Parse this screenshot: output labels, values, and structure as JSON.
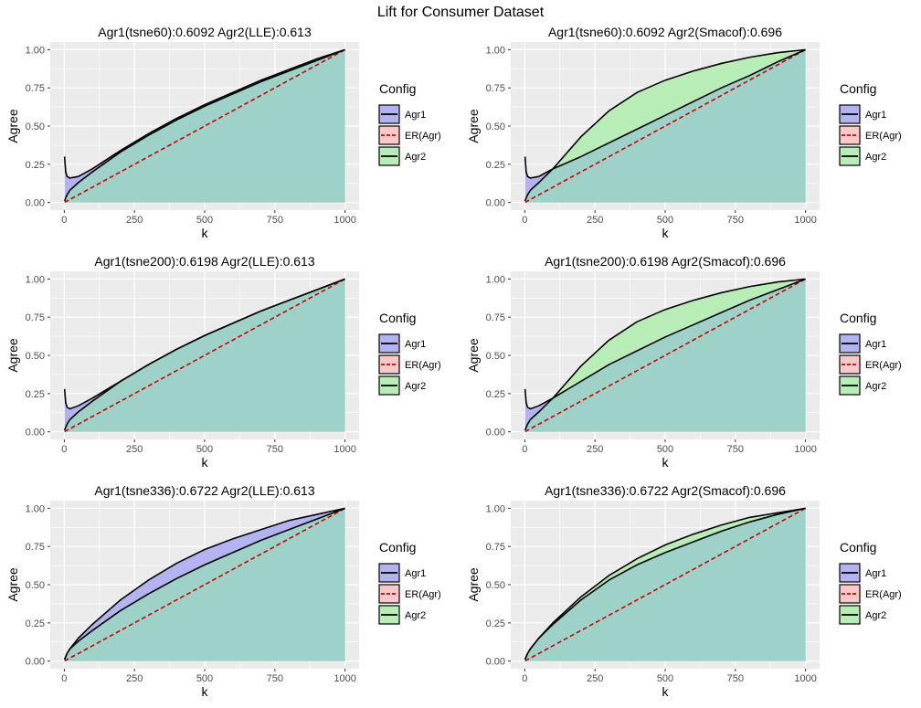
{
  "figure_title": "Lift for Consumer Dataset",
  "colors": {
    "panel_bg": "#EBEBEB",
    "grid": "#FFFFFF",
    "agr1_fill": "#B3B3F2",
    "agr2_fill": "#B8EDB8",
    "er_fill": "#F9C8C8",
    "overlap_fill": "#9ED2C8",
    "er_line": "#CC0000",
    "curve_line": "#000000",
    "tick_text": "#4D4D4D"
  },
  "chart_data": [
    {
      "type": "area",
      "title": "Agr1(tsne60):0.6092 Agr2(LLE):0.613",
      "xlabel": "k",
      "ylabel": "Agree",
      "xlim": [
        0,
        1000
      ],
      "ylim": [
        0,
        1
      ],
      "xticks": [
        "0",
        "250",
        "500",
        "750",
        "1000"
      ],
      "yticks": [
        "0.00",
        "0.25",
        "0.50",
        "0.75",
        "1.00"
      ],
      "legend": {
        "title": "Config",
        "position": "right",
        "entries": [
          "Agr1",
          "ER(Agr)",
          "Agr2"
        ]
      },
      "x": [
        1,
        5,
        10,
        20,
        50,
        100,
        200,
        300,
        400,
        500,
        600,
        700,
        800,
        900,
        1000
      ],
      "series": [
        {
          "name": "Agr1",
          "values": [
            0.3,
            0.2,
            0.17,
            0.16,
            0.17,
            0.22,
            0.34,
            0.45,
            0.55,
            0.64,
            0.72,
            0.8,
            0.87,
            0.94,
            1.0
          ]
        },
        {
          "name": "ER(Agr)",
          "values": [
            0.001,
            0.005,
            0.01,
            0.02,
            0.05,
            0.1,
            0.2,
            0.3,
            0.4,
            0.5,
            0.6,
            0.7,
            0.8,
            0.9,
            1.0
          ]
        },
        {
          "name": "Agr2",
          "values": [
            0.01,
            0.03,
            0.05,
            0.08,
            0.13,
            0.2,
            0.33,
            0.44,
            0.54,
            0.63,
            0.71,
            0.79,
            0.86,
            0.93,
            1.0
          ]
        }
      ]
    },
    {
      "type": "area",
      "title": "Agr1(tsne60):0.6092 Agr2(Smacof):0.696",
      "xlabel": "k",
      "ylabel": "Agree",
      "xlim": [
        0,
        1000
      ],
      "ylim": [
        0,
        1
      ],
      "xticks": [
        "0",
        "250",
        "500",
        "750",
        "1000"
      ],
      "yticks": [
        "0.00",
        "0.25",
        "0.50",
        "0.75",
        "1.00"
      ],
      "legend": {
        "title": "Config",
        "position": "right",
        "entries": [
          "Agr1",
          "ER(Agr)",
          "Agr2"
        ]
      },
      "x": [
        1,
        5,
        10,
        20,
        50,
        100,
        200,
        300,
        400,
        500,
        600,
        700,
        800,
        900,
        1000
      ],
      "series": [
        {
          "name": "Agr1",
          "values": [
            0.3,
            0.2,
            0.17,
            0.16,
            0.17,
            0.22,
            0.3,
            0.39,
            0.48,
            0.57,
            0.66,
            0.75,
            0.83,
            0.92,
            1.0
          ]
        },
        {
          "name": "ER(Agr)",
          "values": [
            0.001,
            0.005,
            0.01,
            0.02,
            0.05,
            0.1,
            0.2,
            0.3,
            0.4,
            0.5,
            0.6,
            0.7,
            0.8,
            0.9,
            1.0
          ]
        },
        {
          "name": "Agr2",
          "values": [
            0.01,
            0.03,
            0.05,
            0.08,
            0.13,
            0.22,
            0.43,
            0.6,
            0.72,
            0.8,
            0.86,
            0.91,
            0.95,
            0.98,
            1.0
          ]
        }
      ]
    },
    {
      "type": "area",
      "title": "Agr1(tsne200):0.6198 Agr2(LLE):0.613",
      "xlabel": "k",
      "ylabel": "Agree",
      "xlim": [
        0,
        1000
      ],
      "ylim": [
        0,
        1
      ],
      "xticks": [
        "0",
        "250",
        "500",
        "750",
        "1000"
      ],
      "yticks": [
        "0.00",
        "0.25",
        "0.50",
        "0.75",
        "1.00"
      ],
      "legend": {
        "title": "Config",
        "position": "right",
        "entries": [
          "Agr1",
          "ER(Agr)",
          "Agr2"
        ]
      },
      "x": [
        1,
        5,
        10,
        20,
        50,
        100,
        200,
        300,
        400,
        500,
        600,
        700,
        800,
        900,
        1000
      ],
      "series": [
        {
          "name": "Agr1",
          "values": [
            0.28,
            0.19,
            0.16,
            0.15,
            0.17,
            0.22,
            0.33,
            0.44,
            0.54,
            0.63,
            0.71,
            0.79,
            0.86,
            0.93,
            1.0
          ]
        },
        {
          "name": "ER(Agr)",
          "values": [
            0.001,
            0.005,
            0.01,
            0.02,
            0.05,
            0.1,
            0.2,
            0.3,
            0.4,
            0.5,
            0.6,
            0.7,
            0.8,
            0.9,
            1.0
          ]
        },
        {
          "name": "Agr2",
          "values": [
            0.01,
            0.03,
            0.05,
            0.08,
            0.13,
            0.2,
            0.33,
            0.44,
            0.54,
            0.63,
            0.71,
            0.79,
            0.86,
            0.93,
            1.0
          ]
        }
      ]
    },
    {
      "type": "area",
      "title": "Agr1(tsne200):0.6198 Agr2(Smacof):0.696",
      "xlabel": "k",
      "ylabel": "Agree",
      "xlim": [
        0,
        1000
      ],
      "ylim": [
        0,
        1
      ],
      "xticks": [
        "0",
        "250",
        "500",
        "750",
        "1000"
      ],
      "yticks": [
        "0.00",
        "0.25",
        "0.50",
        "0.75",
        "1.00"
      ],
      "legend": {
        "title": "Config",
        "position": "right",
        "entries": [
          "Agr1",
          "ER(Agr)",
          "Agr2"
        ]
      },
      "x": [
        1,
        5,
        10,
        20,
        50,
        100,
        200,
        300,
        400,
        500,
        600,
        700,
        800,
        900,
        1000
      ],
      "series": [
        {
          "name": "Agr1",
          "values": [
            0.28,
            0.19,
            0.16,
            0.15,
            0.17,
            0.22,
            0.33,
            0.44,
            0.53,
            0.62,
            0.7,
            0.78,
            0.86,
            0.93,
            1.0
          ]
        },
        {
          "name": "ER(Agr)",
          "values": [
            0.001,
            0.005,
            0.01,
            0.02,
            0.05,
            0.1,
            0.2,
            0.3,
            0.4,
            0.5,
            0.6,
            0.7,
            0.8,
            0.9,
            1.0
          ]
        },
        {
          "name": "Agr2",
          "values": [
            0.01,
            0.03,
            0.05,
            0.08,
            0.13,
            0.22,
            0.43,
            0.6,
            0.72,
            0.8,
            0.86,
            0.91,
            0.95,
            0.98,
            1.0
          ]
        }
      ]
    },
    {
      "type": "area",
      "title": "Agr1(tsne336):0.6722 Agr2(LLE):0.613",
      "xlabel": "k",
      "ylabel": "Agree",
      "xlim": [
        0,
        1000
      ],
      "ylim": [
        0,
        1
      ],
      "xticks": [
        "0",
        "250",
        "500",
        "750",
        "1000"
      ],
      "yticks": [
        "0.00",
        "0.25",
        "0.50",
        "0.75",
        "1.00"
      ],
      "legend": {
        "title": "Config",
        "position": "right",
        "entries": [
          "Agr1",
          "ER(Agr)",
          "Agr2"
        ]
      },
      "x": [
        1,
        5,
        10,
        20,
        50,
        100,
        200,
        300,
        400,
        500,
        600,
        700,
        800,
        900,
        1000
      ],
      "series": [
        {
          "name": "Agr1",
          "values": [
            0.01,
            0.03,
            0.05,
            0.08,
            0.15,
            0.24,
            0.4,
            0.53,
            0.64,
            0.73,
            0.8,
            0.86,
            0.92,
            0.96,
            1.0
          ]
        },
        {
          "name": "ER(Agr)",
          "values": [
            0.001,
            0.005,
            0.01,
            0.02,
            0.05,
            0.1,
            0.2,
            0.3,
            0.4,
            0.5,
            0.6,
            0.7,
            0.8,
            0.9,
            1.0
          ]
        },
        {
          "name": "Agr2",
          "values": [
            0.01,
            0.03,
            0.05,
            0.08,
            0.13,
            0.2,
            0.33,
            0.44,
            0.54,
            0.63,
            0.71,
            0.79,
            0.86,
            0.93,
            1.0
          ]
        }
      ]
    },
    {
      "type": "area",
      "title": "Agr1(tsne336):0.6722 Agr2(Smacof):0.696",
      "xlabel": "k",
      "ylabel": "Agree",
      "xlim": [
        0,
        1000
      ],
      "ylim": [
        0,
        1
      ],
      "xticks": [
        "0",
        "250",
        "500",
        "750",
        "1000"
      ],
      "yticks": [
        "0.00",
        "0.25",
        "0.50",
        "0.75",
        "1.00"
      ],
      "legend": {
        "title": "Config",
        "position": "right",
        "entries": [
          "Agr1",
          "ER(Agr)",
          "Agr2"
        ]
      },
      "x": [
        1,
        5,
        10,
        20,
        50,
        100,
        200,
        300,
        400,
        500,
        600,
        700,
        800,
        900,
        1000
      ],
      "series": [
        {
          "name": "Agr1",
          "values": [
            0.01,
            0.03,
            0.05,
            0.08,
            0.15,
            0.24,
            0.4,
            0.53,
            0.63,
            0.71,
            0.78,
            0.85,
            0.91,
            0.96,
            1.0
          ]
        },
        {
          "name": "ER(Agr)",
          "values": [
            0.001,
            0.005,
            0.01,
            0.02,
            0.05,
            0.1,
            0.2,
            0.3,
            0.4,
            0.5,
            0.6,
            0.7,
            0.8,
            0.9,
            1.0
          ]
        },
        {
          "name": "Agr2",
          "values": [
            0.01,
            0.03,
            0.05,
            0.08,
            0.15,
            0.25,
            0.42,
            0.56,
            0.67,
            0.76,
            0.83,
            0.89,
            0.94,
            0.97,
            1.0
          ]
        }
      ]
    }
  ]
}
